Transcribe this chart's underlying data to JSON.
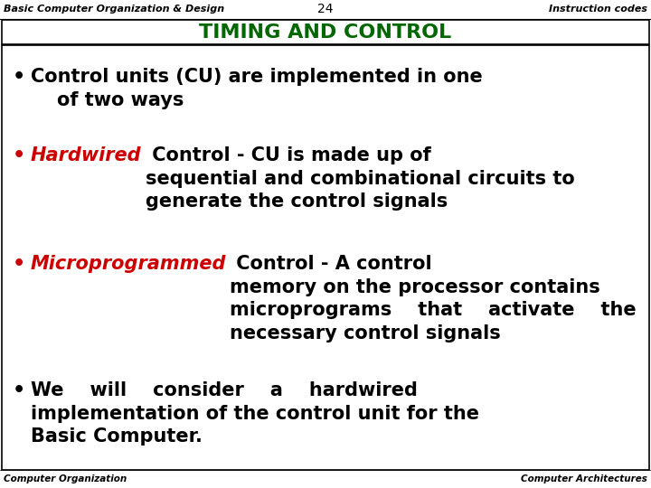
{
  "header_left": "Basic Computer Organization & Design",
  "header_center": "24",
  "header_right": "Instruction codes",
  "title": "TIMING AND CONTROL",
  "title_color": "#006600",
  "footer_left": "Computer Organization",
  "footer_right": "Computer Architectures",
  "background_color": "#ffffff",
  "highlight_color": "#cc0000",
  "header_fontsize": 8,
  "title_fontsize": 16,
  "bullet_fontsize": 15,
  "footer_fontsize": 7.5
}
